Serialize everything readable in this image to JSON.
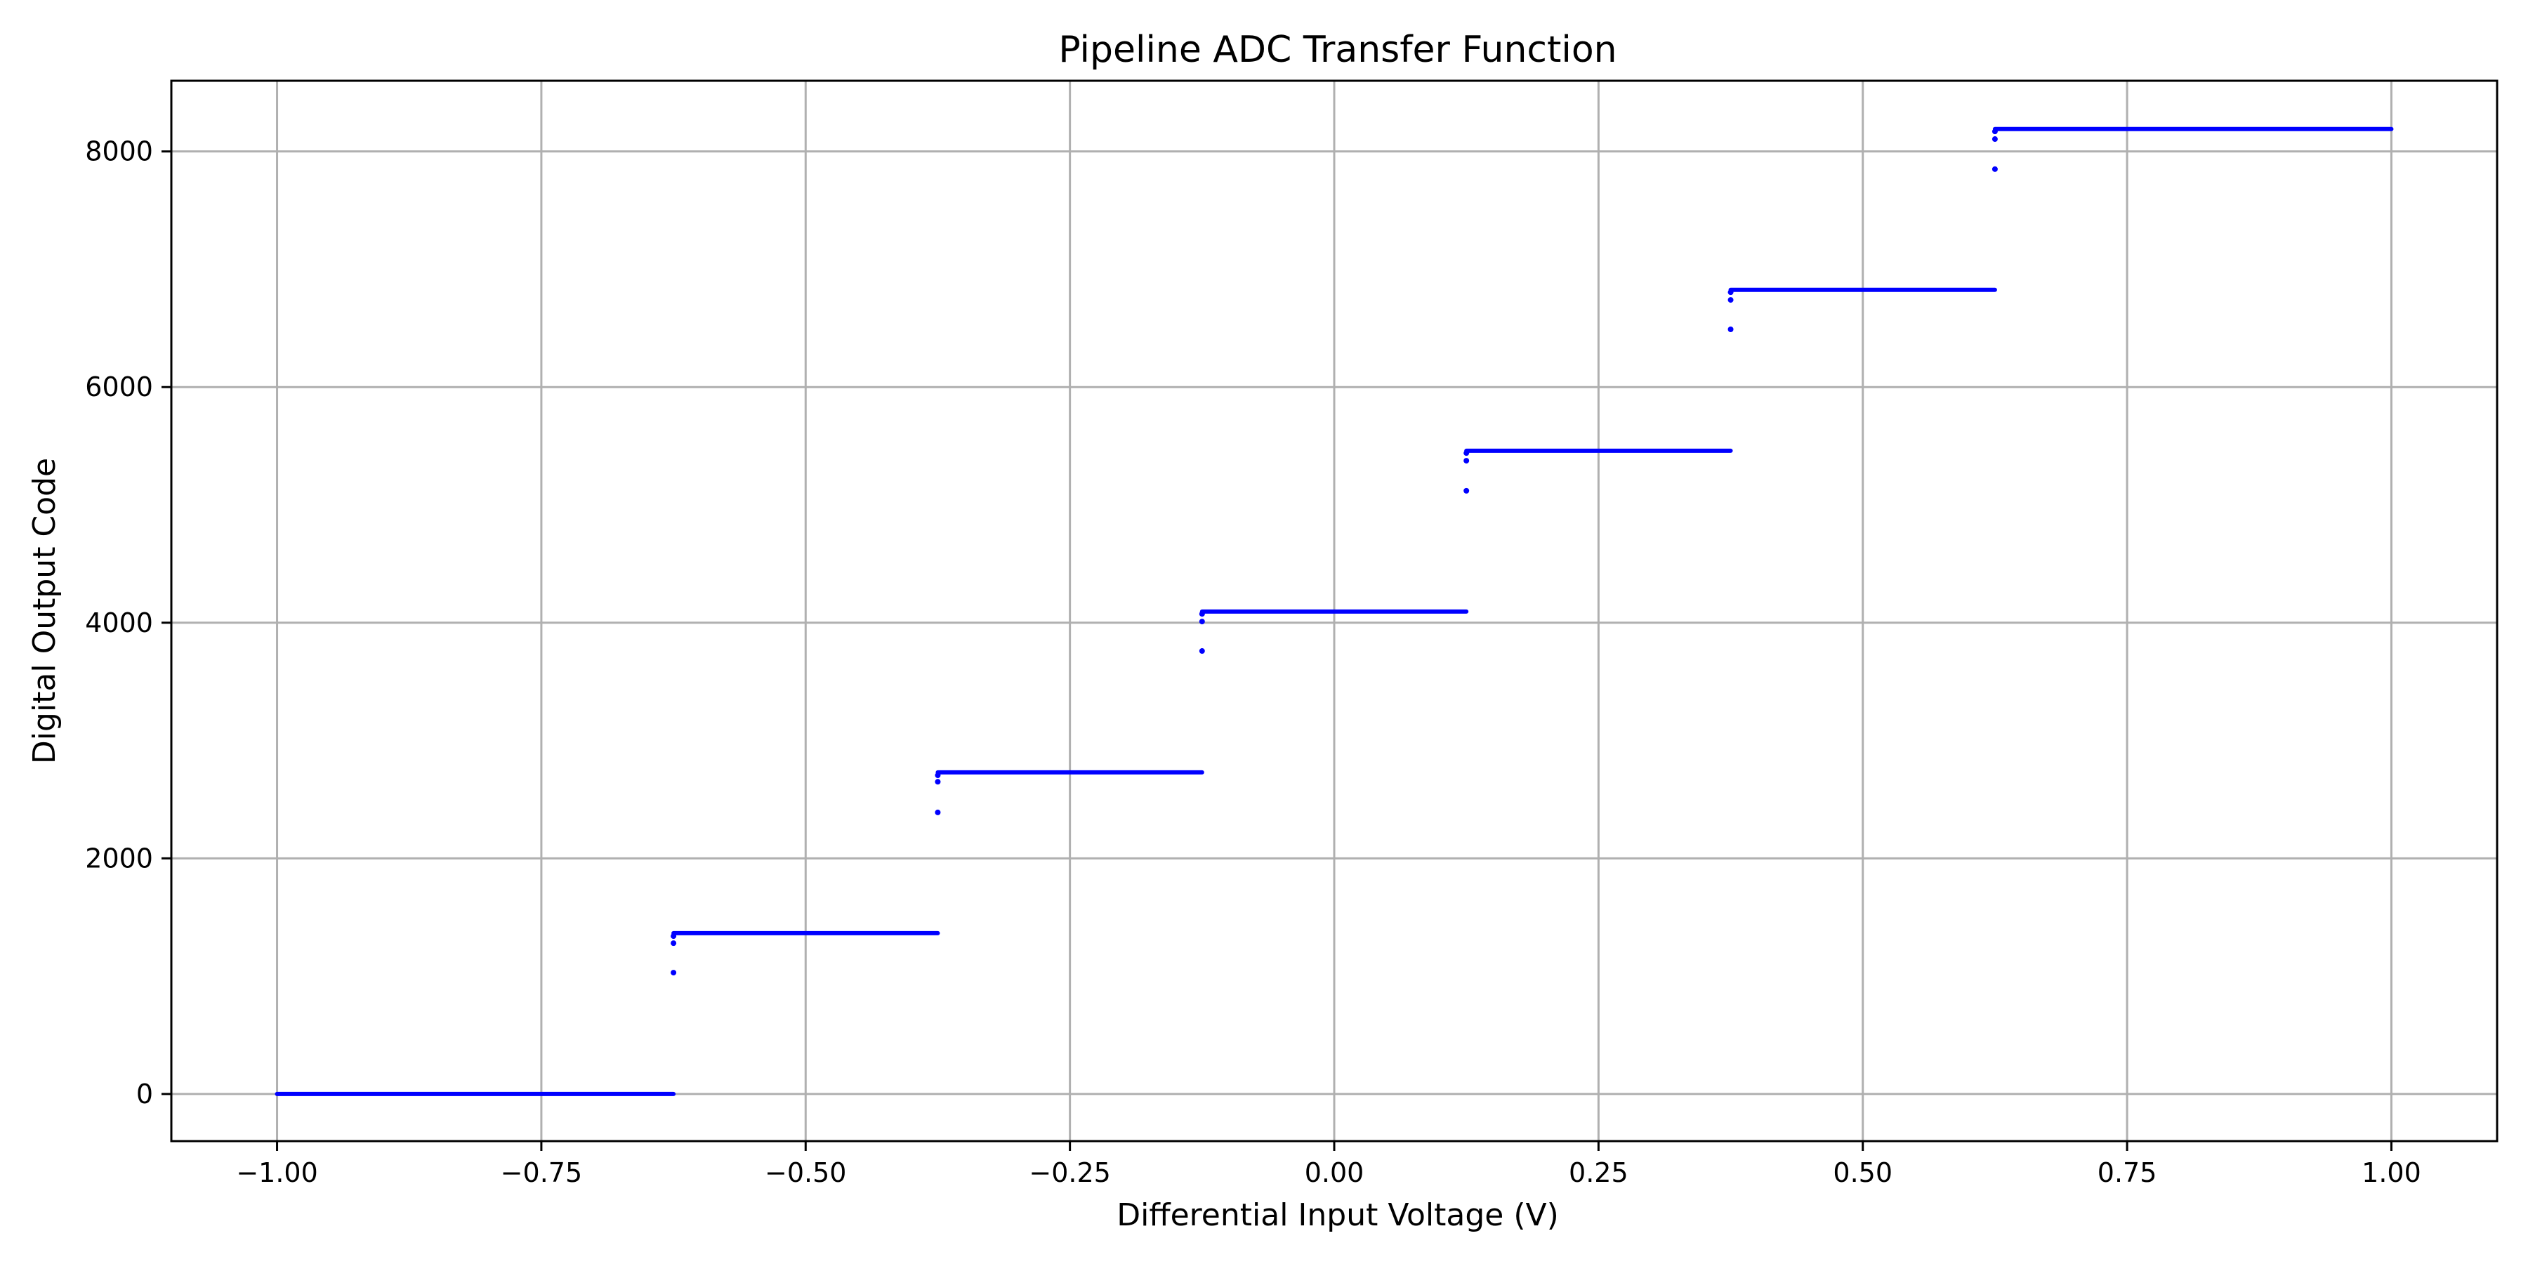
{
  "chart_data": {
    "type": "scatter",
    "title": "Pipeline ADC Transfer Function",
    "xlabel": "Differential Input Voltage (V)",
    "ylabel": "Digital Output Code",
    "xlim": [
      -1.1,
      1.1
    ],
    "ylim": [
      -400,
      8600
    ],
    "x_ticks": [
      -1.0,
      -0.75,
      -0.5,
      -0.25,
      0.0,
      0.25,
      0.5,
      0.75,
      1.0
    ],
    "x_tick_labels": [
      "−1.00",
      "−0.75",
      "−0.50",
      "−0.25",
      "0.00",
      "0.25",
      "0.50",
      "0.75",
      "1.00"
    ],
    "y_ticks": [
      0,
      2000,
      4000,
      6000,
      8000
    ],
    "y_tick_labels": [
      "0",
      "2000",
      "4000",
      "6000",
      "8000"
    ],
    "grid": true,
    "color": "#0000ff",
    "series": [
      {
        "steps": [
          {
            "x_start": -1.0,
            "x_end": -0.625,
            "code": 0
          },
          {
            "x_start": -0.625,
            "x_end": -0.375,
            "code": 1365
          },
          {
            "x_start": -0.375,
            "x_end": -0.125,
            "code": 2730
          },
          {
            "x_start": -0.125,
            "x_end": 0.125,
            "code": 4095
          },
          {
            "x_start": 0.125,
            "x_end": 0.375,
            "code": 5460
          },
          {
            "x_start": 0.375,
            "x_end": 0.625,
            "code": 6825
          },
          {
            "x_start": 0.625,
            "x_end": 1.0,
            "code": 8190
          }
        ],
        "transition_points": [
          {
            "x": -0.625,
            "y": 1030
          },
          {
            "x": -0.625,
            "y": 1280
          },
          {
            "x": -0.625,
            "y": 1340
          },
          {
            "x": -0.375,
            "y": 2390
          },
          {
            "x": -0.375,
            "y": 2650
          },
          {
            "x": -0.375,
            "y": 2705
          },
          {
            "x": -0.125,
            "y": 3760
          },
          {
            "x": -0.125,
            "y": 4010
          },
          {
            "x": -0.125,
            "y": 4075
          },
          {
            "x": 0.125,
            "y": 5120
          },
          {
            "x": 0.125,
            "y": 5375
          },
          {
            "x": 0.125,
            "y": 5440
          },
          {
            "x": 0.375,
            "y": 6490
          },
          {
            "x": 0.375,
            "y": 6740
          },
          {
            "x": 0.375,
            "y": 6805
          },
          {
            "x": 0.625,
            "y": 7850
          },
          {
            "x": 0.625,
            "y": 8105
          },
          {
            "x": 0.625,
            "y": 8170
          }
        ]
      }
    ]
  }
}
